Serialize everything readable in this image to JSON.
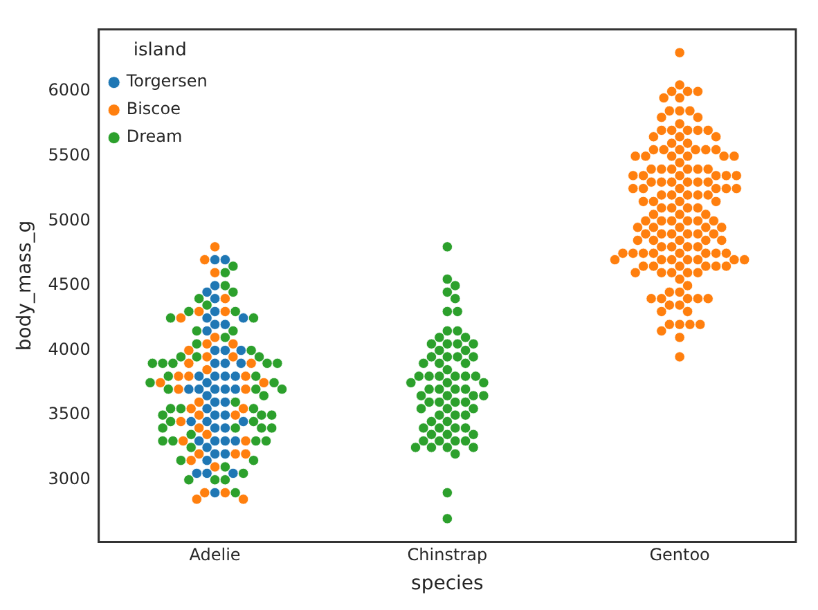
{
  "chart_data": {
    "type": "scatter",
    "xlabel": "species",
    "ylabel": "body_mass_g",
    "legend_title": "island",
    "legend": "top left",
    "grid": false,
    "marker": "circle",
    "categories": [
      "Adelie",
      "Chinstrap",
      "Gentoo"
    ],
    "ylim": [
      2520,
      6480
    ],
    "yticks": [
      3000,
      3500,
      4000,
      4500,
      5000,
      5500,
      6000
    ],
    "series": [
      {
        "name": "Torgersen",
        "color": "#1f77b4",
        "x": [
          "Adelie",
          "Adelie",
          "Adelie",
          "Adelie",
          "Adelie",
          "Adelie",
          "Adelie",
          "Adelie",
          "Adelie",
          "Adelie",
          "Adelie",
          "Adelie",
          "Adelie",
          "Adelie",
          "Adelie",
          "Adelie",
          "Adelie",
          "Adelie",
          "Adelie",
          "Adelie",
          "Adelie",
          "Adelie",
          "Adelie",
          "Adelie",
          "Adelie",
          "Adelie",
          "Adelie",
          "Adelie",
          "Adelie",
          "Adelie",
          "Adelie",
          "Adelie",
          "Adelie",
          "Adelie",
          "Adelie",
          "Adelie",
          "Adelie",
          "Adelie",
          "Adelie",
          "Adelie",
          "Adelie",
          "Adelie",
          "Adelie",
          "Adelie",
          "Adelie",
          "Adelie",
          "Adelie",
          "Adelie",
          "Adelie",
          "Adelie"
        ],
        "values": [
          4700,
          4700,
          4500,
          4450,
          4400,
          4300,
          4250,
          4250,
          4200,
          4200,
          4150,
          4000,
          4000,
          4000,
          3900,
          3900,
          3900,
          3800,
          3800,
          3800,
          3800,
          3750,
          3700,
          3700,
          3700,
          3700,
          3700,
          3650,
          3600,
          3600,
          3550,
          3500,
          3500,
          3450,
          3450,
          3450,
          3400,
          3400,
          3300,
          3300,
          3300,
          3300,
          3250,
          3200,
          3200,
          3150,
          3050,
          3050,
          3050,
          2900
        ]
      },
      {
        "name": "Biscoe",
        "color": "#ff7f0e",
        "x": [
          "Adelie",
          "Adelie",
          "Adelie",
          "Adelie",
          "Adelie",
          "Adelie",
          "Adelie",
          "Adelie",
          "Adelie",
          "Adelie",
          "Adelie",
          "Adelie",
          "Adelie",
          "Adelie",
          "Adelie",
          "Adelie",
          "Adelie",
          "Adelie",
          "Adelie",
          "Adelie",
          "Adelie",
          "Adelie",
          "Adelie",
          "Adelie",
          "Adelie",
          "Adelie",
          "Adelie",
          "Adelie",
          "Adelie",
          "Adelie",
          "Adelie",
          "Adelie",
          "Adelie",
          "Adelie",
          "Adelie",
          "Adelie",
          "Adelie",
          "Adelie",
          "Adelie",
          "Adelie",
          "Adelie",
          "Adelie",
          "Gentoo",
          "Gentoo",
          "Gentoo",
          "Gentoo",
          "Gentoo",
          "Gentoo",
          "Gentoo",
          "Gentoo",
          "Gentoo",
          "Gentoo",
          "Gentoo",
          "Gentoo",
          "Gentoo",
          "Gentoo",
          "Gentoo",
          "Gentoo",
          "Gentoo",
          "Gentoo",
          "Gentoo",
          "Gentoo",
          "Gentoo",
          "Gentoo",
          "Gentoo",
          "Gentoo",
          "Gentoo",
          "Gentoo",
          "Gentoo",
          "Gentoo",
          "Gentoo",
          "Gentoo",
          "Gentoo",
          "Gentoo",
          "Gentoo",
          "Gentoo",
          "Gentoo",
          "Gentoo",
          "Gentoo",
          "Gentoo",
          "Gentoo",
          "Gentoo",
          "Gentoo",
          "Gentoo",
          "Gentoo",
          "Gentoo",
          "Gentoo",
          "Gentoo",
          "Gentoo",
          "Gentoo",
          "Gentoo",
          "Gentoo",
          "Gentoo",
          "Gentoo",
          "Gentoo",
          "Gentoo",
          "Gentoo",
          "Gentoo",
          "Gentoo",
          "Gentoo",
          "Gentoo",
          "Gentoo",
          "Gentoo",
          "Gentoo",
          "Gentoo",
          "Gentoo",
          "Gentoo",
          "Gentoo",
          "Gentoo",
          "Gentoo",
          "Gentoo",
          "Gentoo",
          "Gentoo",
          "Gentoo",
          "Gentoo",
          "Gentoo",
          "Gentoo",
          "Gentoo",
          "Gentoo",
          "Gentoo",
          "Gentoo",
          "Gentoo",
          "Gentoo",
          "Gentoo",
          "Gentoo",
          "Gentoo",
          "Gentoo",
          "Gentoo",
          "Gentoo",
          "Gentoo",
          "Gentoo",
          "Gentoo",
          "Gentoo",
          "Gentoo",
          "Gentoo",
          "Gentoo",
          "Gentoo",
          "Gentoo",
          "Gentoo",
          "Gentoo",
          "Gentoo",
          "Gentoo",
          "Gentoo",
          "Gentoo",
          "Gentoo",
          "Gentoo",
          "Gentoo",
          "Gentoo",
          "Gentoo",
          "Gentoo",
          "Gentoo",
          "Gentoo",
          "Gentoo",
          "Gentoo",
          "Gentoo",
          "Gentoo",
          "Gentoo",
          "Gentoo",
          "Gentoo",
          "Gentoo",
          "Gentoo",
          "Gentoo",
          "Gentoo",
          "Gentoo",
          "Gentoo",
          "Gentoo",
          "Gentoo",
          "Gentoo",
          "Gentoo",
          "Gentoo",
          "Gentoo",
          "Gentoo",
          "Gentoo",
          "Gentoo",
          "Gentoo",
          "Gentoo",
          "Gentoo",
          "Gentoo",
          "Gentoo",
          "Gentoo",
          "Gentoo",
          "Gentoo",
          "Gentoo",
          "Gentoo",
          "Gentoo",
          "Gentoo",
          "Gentoo",
          "Gentoo",
          "Gentoo",
          "Gentoo"
        ],
        "values": [
          4800,
          4700,
          4600,
          4400,
          4300,
          4300,
          4250,
          4100,
          4050,
          4050,
          4000,
          3950,
          3950,
          3900,
          3900,
          3850,
          3800,
          3800,
          3800,
          3750,
          3750,
          3700,
          3700,
          3600,
          3550,
          3550,
          3500,
          3500,
          3450,
          3400,
          3350,
          3300,
          3300,
          3200,
          3200,
          3200,
          3150,
          3100,
          2900,
          2900,
          2850,
          2850,
          6300,
          6050,
          6000,
          6000,
          6000,
          5950,
          5950,
          5850,
          5850,
          5850,
          5800,
          5800,
          5750,
          5700,
          5700,
          5700,
          5700,
          5700,
          5650,
          5650,
          5650,
          5600,
          5600,
          5550,
          5550,
          5550,
          5550,
          5550,
          5550,
          5500,
          5500,
          5500,
          5500,
          5500,
          5500,
          5450,
          5400,
          5400,
          5400,
          5400,
          5400,
          5400,
          5350,
          5350,
          5350,
          5350,
          5350,
          5350,
          5300,
          5300,
          5300,
          5300,
          5300,
          5300,
          5250,
          5250,
          5250,
          5250,
          5250,
          5250,
          5200,
          5200,
          5200,
          5200,
          5200,
          5150,
          5150,
          5150,
          5150,
          5100,
          5100,
          5100,
          5100,
          5050,
          5050,
          5050,
          5000,
          5000,
          5000,
          5000,
          5000,
          5000,
          4950,
          4950,
          4950,
          4950,
          4950,
          4900,
          4900,
          4900,
          4900,
          4900,
          4900,
          4850,
          4850,
          4850,
          4850,
          4850,
          4800,
          4800,
          4800,
          4800,
          4750,
          4750,
          4750,
          4750,
          4750,
          4750,
          4750,
          4750,
          4700,
          4700,
          4700,
          4700,
          4700,
          4700,
          4700,
          4650,
          4650,
          4650,
          4650,
          4650,
          4650,
          4600,
          4600,
          4600,
          4600,
          4600,
          4550,
          4500,
          4450,
          4450,
          4400,
          4400,
          4400,
          4400,
          4400,
          4350,
          4350,
          4300,
          4300,
          4200,
          4200,
          4200,
          4200,
          4150,
          4100,
          3950
        ]
      },
      {
        "name": "Dream",
        "color": "#2ca02c",
        "x": [
          "Adelie",
          "Adelie",
          "Adelie",
          "Adelie",
          "Adelie",
          "Adelie",
          "Adelie",
          "Adelie",
          "Adelie",
          "Adelie",
          "Adelie",
          "Adelie",
          "Adelie",
          "Adelie",
          "Adelie",
          "Adelie",
          "Adelie",
          "Adelie",
          "Adelie",
          "Adelie",
          "Adelie",
          "Adelie",
          "Adelie",
          "Adelie",
          "Adelie",
          "Adelie",
          "Adelie",
          "Adelie",
          "Adelie",
          "Adelie",
          "Adelie",
          "Adelie",
          "Adelie",
          "Adelie",
          "Adelie",
          "Adelie",
          "Adelie",
          "Adelie",
          "Adelie",
          "Adelie",
          "Adelie",
          "Adelie",
          "Adelie",
          "Adelie",
          "Adelie",
          "Adelie",
          "Adelie",
          "Adelie",
          "Adelie",
          "Adelie",
          "Adelie",
          "Adelie",
          "Adelie",
          "Adelie",
          "Adelie",
          "Adelie",
          "Adelie",
          "Adelie",
          "Chinstrap",
          "Chinstrap",
          "Chinstrap",
          "Chinstrap",
          "Chinstrap",
          "Chinstrap",
          "Chinstrap",
          "Chinstrap",
          "Chinstrap",
          "Chinstrap",
          "Chinstrap",
          "Chinstrap",
          "Chinstrap",
          "Chinstrap",
          "Chinstrap",
          "Chinstrap",
          "Chinstrap",
          "Chinstrap",
          "Chinstrap",
          "Chinstrap",
          "Chinstrap",
          "Chinstrap",
          "Chinstrap",
          "Chinstrap",
          "Chinstrap",
          "Chinstrap",
          "Chinstrap",
          "Chinstrap",
          "Chinstrap",
          "Chinstrap",
          "Chinstrap",
          "Chinstrap",
          "Chinstrap",
          "Chinstrap",
          "Chinstrap",
          "Chinstrap",
          "Chinstrap",
          "Chinstrap",
          "Chinstrap",
          "Chinstrap",
          "Chinstrap",
          "Chinstrap",
          "Chinstrap",
          "Chinstrap",
          "Chinstrap",
          "Chinstrap",
          "Chinstrap",
          "Chinstrap",
          "Chinstrap",
          "Chinstrap",
          "Chinstrap",
          "Chinstrap",
          "Chinstrap",
          "Chinstrap",
          "Chinstrap",
          "Chinstrap",
          "Chinstrap",
          "Chinstrap",
          "Chinstrap",
          "Chinstrap",
          "Chinstrap",
          "Chinstrap",
          "Chinstrap",
          "Chinstrap",
          "Chinstrap",
          "Chinstrap",
          "Chinstrap",
          "Chinstrap",
          "Chinstrap",
          "Chinstrap",
          "Chinstrap",
          "Chinstrap"
        ],
        "values": [
          4650,
          4600,
          4500,
          4450,
          4400,
          4350,
          4300,
          4300,
          4250,
          4250,
          4150,
          4150,
          4100,
          4050,
          4000,
          3950,
          3950,
          3950,
          3900,
          3900,
          3900,
          3900,
          3900,
          3800,
          3800,
          3750,
          3750,
          3700,
          3700,
          3700,
          3650,
          3600,
          3550,
          3550,
          3550,
          3500,
          3500,
          3500,
          3450,
          3450,
          3400,
          3400,
          3400,
          3400,
          3350,
          3300,
          3300,
          3300,
          3300,
          3250,
          3150,
          3150,
          3100,
          3050,
          3000,
          3000,
          3000,
          2900,
          4800,
          4550,
          4500,
          4450,
          4400,
          4300,
          4300,
          4150,
          4150,
          4100,
          4100,
          4050,
          4050,
          4050,
          4050,
          4000,
          4000,
          3950,
          3950,
          3950,
          3950,
          3900,
          3900,
          3900,
          3850,
          3800,
          3800,
          3800,
          3800,
          3800,
          3800,
          3750,
          3750,
          3750,
          3700,
          3700,
          3700,
          3700,
          3650,
          3650,
          3650,
          3650,
          3600,
          3600,
          3600,
          3600,
          3550,
          3550,
          3550,
          3500,
          3500,
          3500,
          3450,
          3450,
          3400,
          3400,
          3400,
          3400,
          3350,
          3350,
          3350,
          3300,
          3300,
          3300,
          3300,
          3250,
          3250,
          3250,
          3250,
          3200,
          2900,
          2700
        ]
      }
    ]
  }
}
